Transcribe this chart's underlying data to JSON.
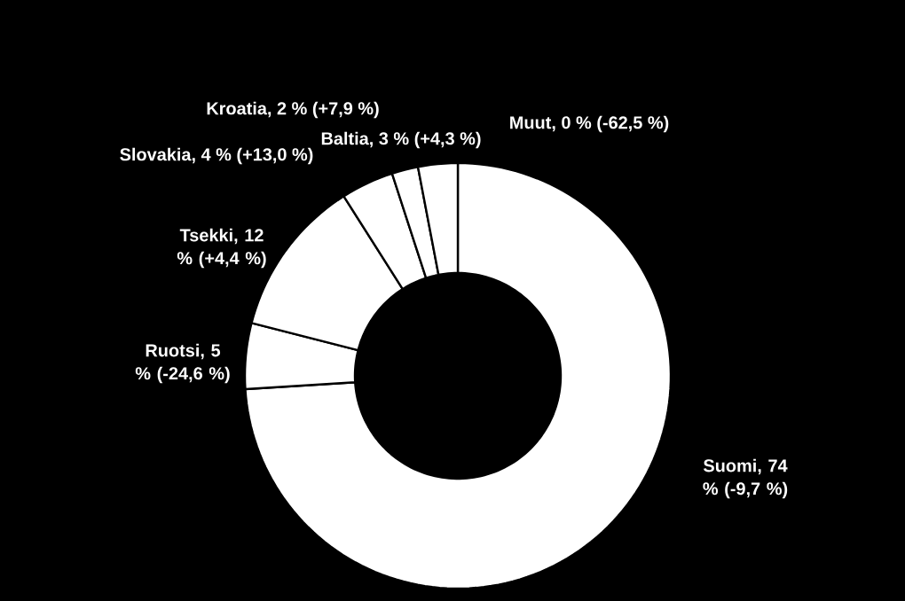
{
  "chart_data": {
    "type": "donut",
    "categories": [
      "Suomi, 74 % (-9,7 %)",
      "Ruotsi, 5 % (-24,6 %)",
      "Tsekki, 12 % (+4,4 %)",
      "Slovakia, 4 % (+13,0 %)",
      "Kroatia, 2 % (+7,9 %)",
      "Baltia, 3 % (+4,3 %)",
      "Muut, 0 % (-62,5 %)"
    ],
    "values": [
      74,
      5,
      12,
      4,
      2,
      3,
      0
    ],
    "colors": [
      "#ffffff",
      "#ffffff",
      "#ffffff",
      "#ffffff",
      "#ffffff",
      "#ffffff",
      "#ffffff"
    ]
  }
}
